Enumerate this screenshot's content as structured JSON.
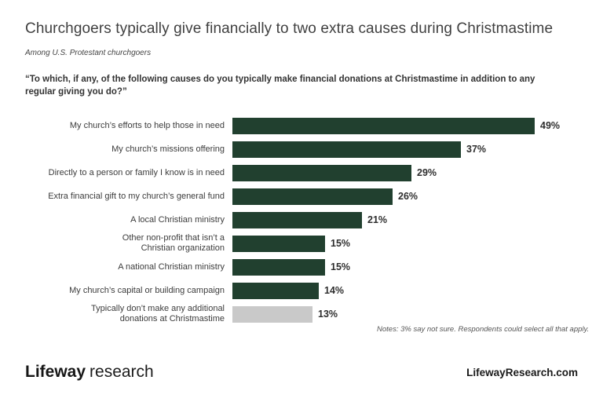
{
  "title": "Churchgoers typically give financially to two extra causes during Christmastime",
  "subtitle": "Among U.S. Protestant churchgoers",
  "question": "“To which, if any, of the following causes do you typically make financial donations at Christmastime in addition to any regular giving you do?”",
  "note": "Notes: 3% say not sure. Respondents could select all that apply.",
  "footer": {
    "brand_bold": "Lifeway",
    "brand_light": "research",
    "website": "LifewayResearch.com"
  },
  "colors": {
    "bar": "#21402f",
    "bar_muted": "#c9c9c9",
    "text": "#3b3b3b"
  },
  "chart_data": {
    "type": "bar",
    "orientation": "horizontal",
    "title": "Churchgoers typically give financially to two extra causes during Christmastime",
    "categories": [
      "My church’s efforts to help those in need",
      "My church’s missions offering",
      "Directly to a person or family I know is in need",
      "Extra financial gift to my church’s general fund",
      "A local Christian ministry",
      "Other non-profit that isn’t a\nChristian organization",
      "A national Christian ministry",
      "My church’s capital or building campaign",
      "Typically don’t make any additional\ndonations at Christmastime"
    ],
    "values": [
      49,
      37,
      29,
      26,
      21,
      15,
      15,
      14,
      13
    ],
    "value_suffix": "%",
    "xlim": [
      0,
      49
    ],
    "grid": false,
    "legend": false,
    "muted_index": 8
  }
}
